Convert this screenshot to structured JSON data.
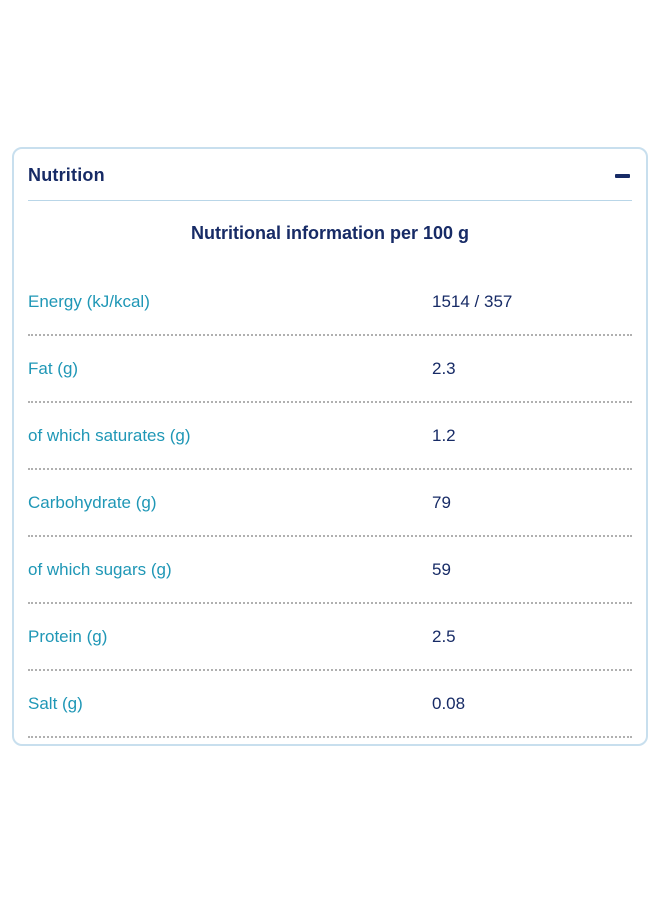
{
  "accordion": {
    "title": "Nutrition",
    "toggle_icon": "minus-icon"
  },
  "nutrition_table": {
    "caption": "Nutritional information per 100 g",
    "rows": [
      {
        "label": "Energy (kJ/kcal)",
        "value": "1514 / 357"
      },
      {
        "label": "Fat (g)",
        "value": "2.3"
      },
      {
        "label": "of which saturates (g)",
        "value": "1.2"
      },
      {
        "label": "Carbohydrate (g)",
        "value": "79"
      },
      {
        "label": "of which sugars (g)",
        "value": "59"
      },
      {
        "label": "Protein (g)",
        "value": "2.5"
      },
      {
        "label": "Salt (g)",
        "value": "0.08"
      }
    ]
  },
  "colors": {
    "navy_text": "#172b66",
    "teal_label": "#1f97b6",
    "panel_border": "#c8dfee",
    "header_divider": "#b9d6e8",
    "row_separator_dots": "#b0b0b0"
  }
}
